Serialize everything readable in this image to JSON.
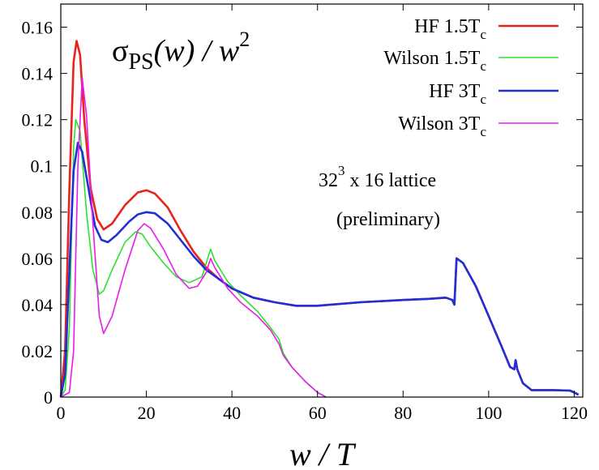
{
  "chart_data": {
    "type": "line",
    "title": "σ_PS(w)/w^2",
    "title_parts": {
      "sigma": "σ",
      "sub": "PS",
      "arg": "(w) / w",
      "sup": "2"
    },
    "xlabel": "w / T",
    "ylabel": "",
    "xlim": [
      0,
      122
    ],
    "ylim": [
      0,
      0.17
    ],
    "x_ticks": [
      0,
      20,
      40,
      60,
      80,
      100,
      120
    ],
    "x_tick_labels": [
      "0",
      "20",
      "40",
      "60",
      "80",
      "100",
      "120"
    ],
    "y_ticks": [
      0,
      0.02,
      0.04,
      0.06,
      0.08,
      0.1,
      0.12,
      0.14,
      0.16
    ],
    "y_tick_labels": [
      "0",
      "0.02",
      "0.04",
      "0.06",
      "0.08",
      "0.1",
      "0.12",
      "0.14",
      "0.16"
    ],
    "grid": false,
    "legend_position": "top-right",
    "annotations": [
      {
        "text": "32",
        "sup": "3",
        "rest": " x 16  lattice"
      },
      {
        "text": "(preliminary)"
      }
    ],
    "series": [
      {
        "name": "HF 1.5T_c",
        "label_main": "HF 1.5T",
        "label_sub": "c",
        "color": "#e8231c",
        "points": [
          [
            0,
            0
          ],
          [
            1,
            0.02
          ],
          [
            2,
            0.09
          ],
          [
            3,
            0.145
          ],
          [
            3.7,
            0.154
          ],
          [
            4.5,
            0.148
          ],
          [
            5.5,
            0.12
          ],
          [
            7,
            0.09
          ],
          [
            8.5,
            0.077
          ],
          [
            10,
            0.0725
          ],
          [
            12,
            0.075
          ],
          [
            15,
            0.083
          ],
          [
            18,
            0.0885
          ],
          [
            20,
            0.0895
          ],
          [
            22,
            0.088
          ],
          [
            25,
            0.082
          ],
          [
            28,
            0.072
          ],
          [
            31,
            0.063
          ],
          [
            34,
            0.056
          ],
          [
            37,
            0.051
          ],
          [
            40,
            0.047
          ],
          [
            45,
            0.043
          ],
          [
            50,
            0.041
          ],
          [
            55,
            0.0395
          ],
          [
            60,
            0.0395
          ],
          [
            70,
            0.041
          ],
          [
            80,
            0.042
          ],
          [
            86,
            0.0425
          ],
          [
            90,
            0.043
          ],
          [
            91.5,
            0.042
          ],
          [
            92,
            0.04
          ],
          [
            92.5,
            0.06
          ],
          [
            94,
            0.058
          ],
          [
            97,
            0.048
          ],
          [
            100,
            0.035
          ],
          [
            103,
            0.022
          ],
          [
            105,
            0.013
          ],
          [
            106,
            0.012
          ],
          [
            106.3,
            0.016
          ],
          [
            106.7,
            0.012
          ],
          [
            108,
            0.006
          ],
          [
            110,
            0.003
          ],
          [
            115,
            0.003
          ],
          [
            119,
            0.0028
          ],
          [
            120,
            0.002
          ],
          [
            121,
            0.001
          ]
        ]
      },
      {
        "name": "Wilson 1.5T_c",
        "label_main": "Wilson  1.5T",
        "label_sub": "c",
        "color": "#2ee02e",
        "points": [
          [
            0,
            0
          ],
          [
            1,
            0.003
          ],
          [
            2,
            0.03
          ],
          [
            3,
            0.108
          ],
          [
            3.5,
            0.12
          ],
          [
            4.5,
            0.115
          ],
          [
            6,
            0.08
          ],
          [
            7.5,
            0.055
          ],
          [
            9,
            0.0445
          ],
          [
            10,
            0.046
          ],
          [
            12,
            0.055
          ],
          [
            15,
            0.067
          ],
          [
            17.5,
            0.0715
          ],
          [
            19,
            0.0705
          ],
          [
            21,
            0.065
          ],
          [
            24,
            0.058
          ],
          [
            27,
            0.052
          ],
          [
            30,
            0.0495
          ],
          [
            33,
            0.052
          ],
          [
            35,
            0.064
          ],
          [
            36,
            0.059
          ],
          [
            39,
            0.05
          ],
          [
            42,
            0.044
          ],
          [
            46,
            0.037
          ],
          [
            49,
            0.03
          ],
          [
            51,
            0.025
          ],
          [
            52,
            0.019
          ],
          [
            54,
            0.013
          ],
          [
            57,
            0.007
          ],
          [
            60,
            0.002
          ],
          [
            62,
            0
          ]
        ]
      },
      {
        "name": "HF 3T_c",
        "label_main": "HF   3T",
        "label_sub": "c",
        "color": "#1f30d8",
        "points": [
          [
            0,
            0
          ],
          [
            1,
            0.01
          ],
          [
            2,
            0.055
          ],
          [
            3,
            0.098
          ],
          [
            4,
            0.11
          ],
          [
            5,
            0.106
          ],
          [
            6.5,
            0.09
          ],
          [
            8,
            0.074
          ],
          [
            9.5,
            0.068
          ],
          [
            11,
            0.067
          ],
          [
            13,
            0.07
          ],
          [
            16,
            0.076
          ],
          [
            18,
            0.079
          ],
          [
            20,
            0.08
          ],
          [
            22,
            0.0795
          ],
          [
            25,
            0.075
          ],
          [
            28,
            0.068
          ],
          [
            31,
            0.061
          ],
          [
            34,
            0.055
          ],
          [
            37,
            0.051
          ],
          [
            40,
            0.047
          ],
          [
            45,
            0.043
          ],
          [
            50,
            0.041
          ],
          [
            55,
            0.0395
          ],
          [
            60,
            0.0395
          ],
          [
            70,
            0.041
          ],
          [
            80,
            0.042
          ],
          [
            86,
            0.0425
          ],
          [
            90,
            0.043
          ],
          [
            91.5,
            0.042
          ],
          [
            92,
            0.04
          ],
          [
            92.5,
            0.06
          ],
          [
            94,
            0.058
          ],
          [
            97,
            0.048
          ],
          [
            100,
            0.035
          ],
          [
            103,
            0.022
          ],
          [
            105,
            0.013
          ],
          [
            106,
            0.012
          ],
          [
            106.3,
            0.016
          ],
          [
            106.7,
            0.012
          ],
          [
            108,
            0.006
          ],
          [
            110,
            0.003
          ],
          [
            115,
            0.003
          ],
          [
            119,
            0.0028
          ],
          [
            120,
            0.002
          ],
          [
            121,
            0.001
          ]
        ]
      },
      {
        "name": "Wilson 3T_c",
        "label_main": "Wilson    3T",
        "label_sub": "c",
        "color": "#e81ce8",
        "points": [
          [
            0,
            0
          ],
          [
            2,
            0.002
          ],
          [
            3,
            0.02
          ],
          [
            4,
            0.1
          ],
          [
            5,
            0.138
          ],
          [
            6,
            0.122
          ],
          [
            7.5,
            0.075
          ],
          [
            9,
            0.035
          ],
          [
            10,
            0.0275
          ],
          [
            12,
            0.035
          ],
          [
            15,
            0.055
          ],
          [
            18,
            0.072
          ],
          [
            19.5,
            0.075
          ],
          [
            21,
            0.073
          ],
          [
            24,
            0.064
          ],
          [
            27,
            0.053
          ],
          [
            30,
            0.047
          ],
          [
            32,
            0.048
          ],
          [
            34,
            0.054
          ],
          [
            35,
            0.06
          ],
          [
            36,
            0.056
          ],
          [
            39,
            0.047
          ],
          [
            42,
            0.041
          ],
          [
            46,
            0.035
          ],
          [
            49,
            0.029
          ],
          [
            51,
            0.023
          ],
          [
            52,
            0.018
          ],
          [
            54,
            0.013
          ],
          [
            57,
            0.007
          ],
          [
            60,
            0.002
          ],
          [
            62,
            0
          ]
        ]
      }
    ]
  }
}
